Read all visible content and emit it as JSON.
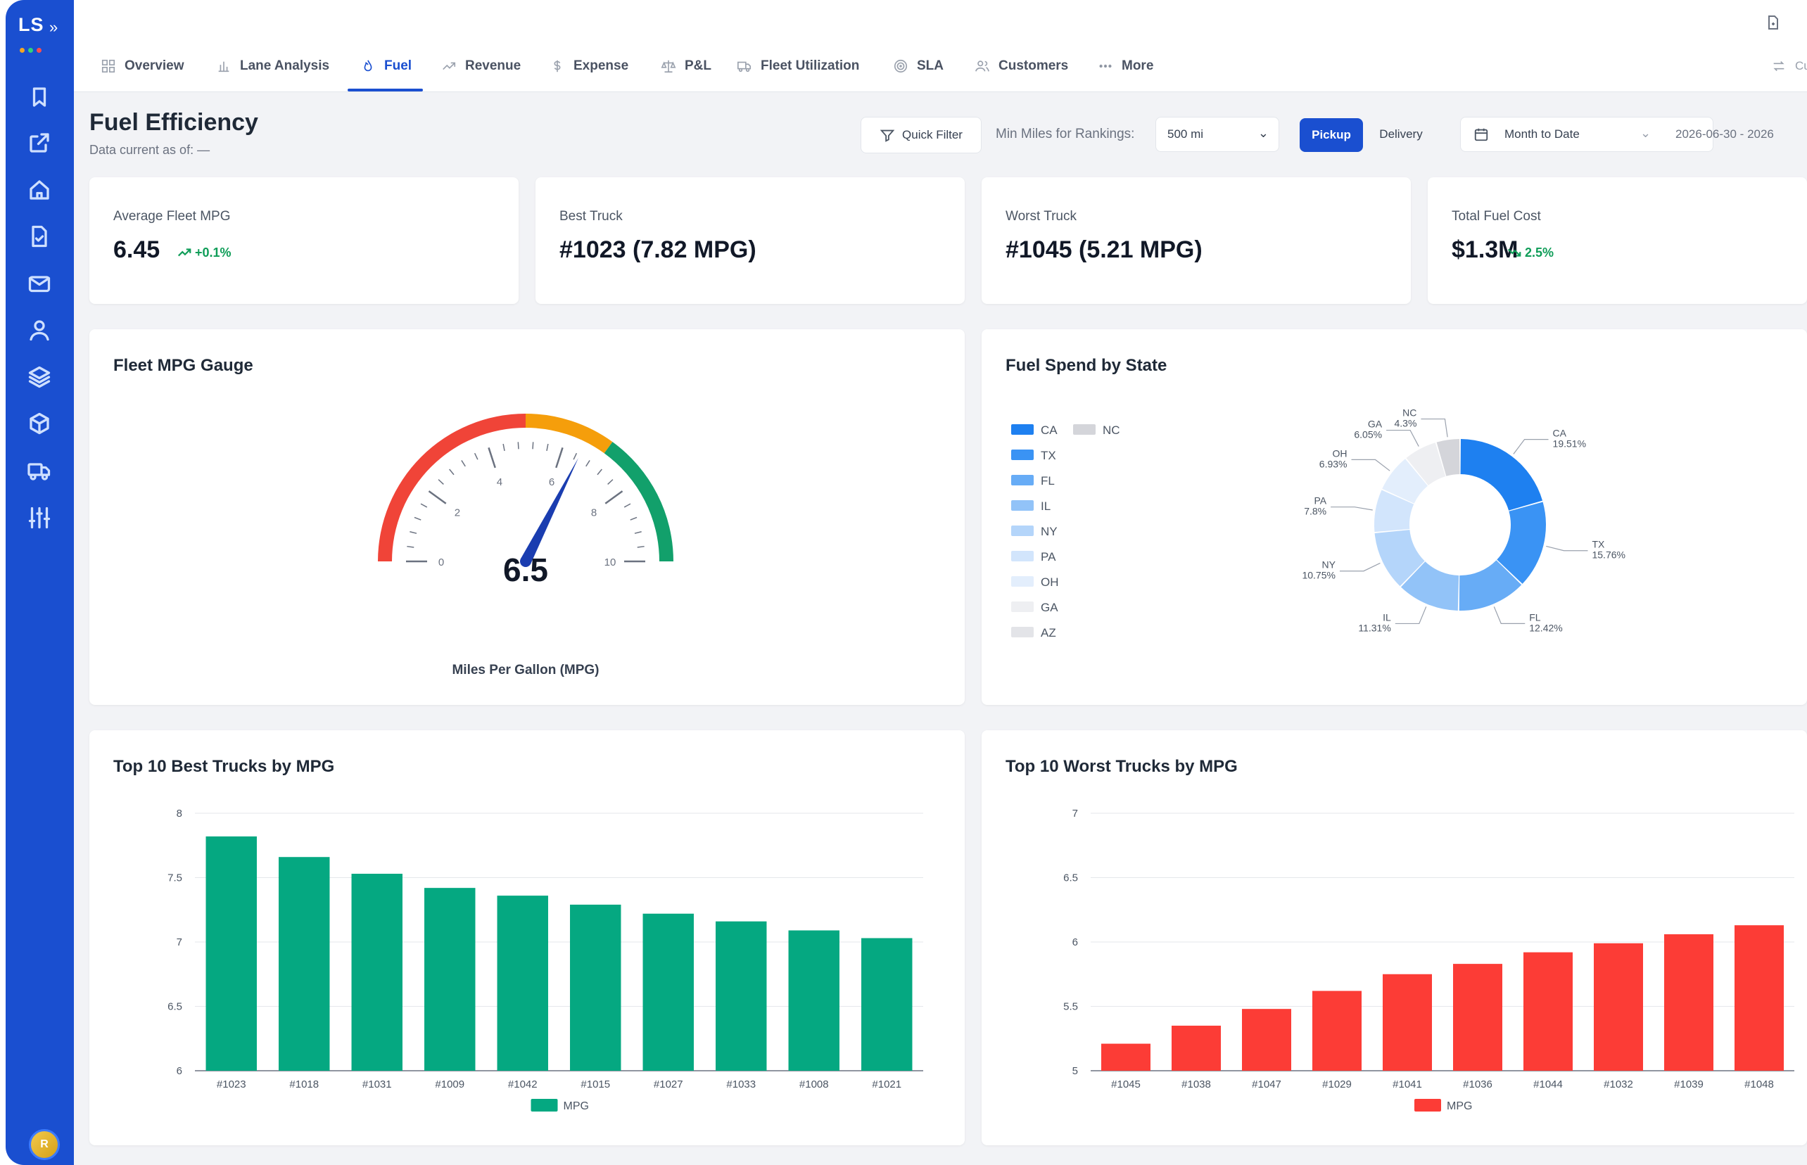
{
  "brand": {
    "logo": "LS",
    "expand": "»",
    "dots": [
      "#f5a623",
      "#2fd37b",
      "#ff4d4f"
    ]
  },
  "sidebar": {
    "icons": [
      "bookmark-icon",
      "external-link-icon",
      "home-icon",
      "document-check-icon",
      "mail-icon",
      "user-icon",
      "layers-icon",
      "package-icon",
      "truck-icon",
      "sliders-icon"
    ],
    "avatar": "R"
  },
  "tabs": [
    {
      "label": "Overview",
      "icon": "grid-icon"
    },
    {
      "label": "Lane Analysis",
      "icon": "bar-chart-icon"
    },
    {
      "label": "Fuel",
      "icon": "flame-icon",
      "active": true
    },
    {
      "label": "Revenue",
      "icon": "trend-up-icon"
    },
    {
      "label": "Expense",
      "icon": "dollar-icon"
    },
    {
      "label": "P&L",
      "icon": "scale-icon"
    },
    {
      "label": "Fleet Utilization",
      "icon": "truck-icon"
    },
    {
      "label": "SLA",
      "icon": "target-icon"
    },
    {
      "label": "Customers",
      "icon": "users-icon"
    },
    {
      "label": "More",
      "icon": "more-dots-icon"
    }
  ],
  "topbar": {
    "right_tab_partial": "Cu"
  },
  "header": {
    "title": "Fuel Efficiency",
    "subtitle": "Data current as of: —",
    "quick_filter": "Quick Filter",
    "min_miles_label": "Min Miles for Rankings:",
    "min_miles_value": "500 mi",
    "pickup": "Pickup",
    "delivery": "Delivery",
    "period": "Month to Date",
    "date_range": "2026-06-30 - 2026"
  },
  "kpis": [
    {
      "label": "Average Fleet MPG",
      "value": "6.45",
      "delta": "+0.1%",
      "trend": "up"
    },
    {
      "label": "Best Truck",
      "value": "#1023 (7.82 MPG)"
    },
    {
      "label": "Worst Truck",
      "value": "#1045 (5.21 MPG)"
    },
    {
      "label": "Total Fuel Cost",
      "value": "$1.3M",
      "delta": "2.5%",
      "trend": "down"
    }
  ],
  "gauge": {
    "title": "Fleet MPG Gauge",
    "value": 6.5,
    "value_label": "6.5",
    "min": 0,
    "max": 10,
    "major_ticks": [
      0,
      2,
      4,
      6,
      8,
      10
    ],
    "caption": "Miles Per Gallon (MPG)",
    "bands": [
      {
        "from": 0,
        "to": 5,
        "color": "#f04438"
      },
      {
        "from": 5,
        "to": 7,
        "color": "#f59e0b"
      },
      {
        "from": 7,
        "to": 10,
        "color": "#12a06b"
      }
    ]
  },
  "chart_data": [
    {
      "type": "pie",
      "title": "Fuel Spend by State",
      "categories": [
        "CA",
        "TX",
        "FL",
        "IL",
        "NY",
        "PA",
        "OH",
        "GA",
        "AZ",
        "NC"
      ],
      "values": [
        19.51,
        15.76,
        12.42,
        11.31,
        10.75,
        7.8,
        6.93,
        6.05,
        null,
        4.3
      ],
      "labels": [
        "CA\n19.51%",
        "TX\n15.76%",
        "FL\n12.42%",
        "IL\n11.31%",
        "NY\n10.75%",
        "PA\n7.8%",
        "OH\n6.93%",
        "GA\n6.05%",
        "",
        "NC\n4.3%"
      ],
      "colors": [
        "#1e80f0",
        "#3a93f4",
        "#67acf6",
        "#92c3f8",
        "#b4d5fa",
        "#d2e5fc",
        "#e3eefc",
        "#eeeff2",
        "#e3e4e8",
        "#d4d5da"
      ],
      "legend_placement": "left"
    },
    {
      "type": "bar",
      "title": "Top 10 Best Trucks by MPG",
      "categories": [
        "#1023",
        "#1018",
        "#1031",
        "#1009",
        "#1042",
        "#1015",
        "#1027",
        "#1033",
        "#1008",
        "#1021"
      ],
      "series": [
        {
          "name": "MPG",
          "values": [
            7.82,
            7.66,
            7.53,
            7.42,
            7.36,
            7.29,
            7.22,
            7.16,
            7.09,
            7.03
          ],
          "color": "#05a881"
        }
      ],
      "ylim": [
        6,
        8
      ],
      "yticks": [
        6,
        6.5,
        7,
        7.5,
        8
      ],
      "grid": true,
      "legend_placement": "bottom"
    },
    {
      "type": "bar",
      "title": "Top 10 Worst Trucks by MPG",
      "categories": [
        "#1045",
        "#1038",
        "#1047",
        "#1029",
        "#1041",
        "#1036",
        "#1044",
        "#1032",
        "#1039",
        "#1048"
      ],
      "series": [
        {
          "name": "MPG",
          "values": [
            5.21,
            5.35,
            5.48,
            5.62,
            5.75,
            5.83,
            5.92,
            5.99,
            6.06,
            6.13
          ],
          "color": "#fc3c36"
        }
      ],
      "ylim": [
        5,
        7
      ],
      "yticks": [
        5,
        5.5,
        6,
        6.5,
        7
      ],
      "grid": true,
      "legend_placement": "bottom"
    }
  ]
}
